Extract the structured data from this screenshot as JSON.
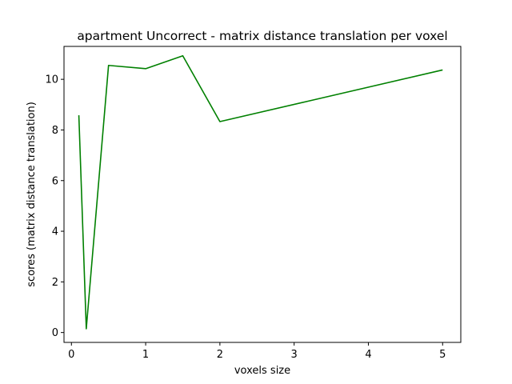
{
  "chart_data": {
    "type": "line",
    "title": "apartment Uncorrect - matrix distance translation per voxel",
    "xlabel": "voxels size",
    "ylabel": "scores (matrix distance translation)",
    "xlim": [
      -0.1,
      5.245
    ],
    "ylim": [
      -0.39,
      11.3
    ],
    "xticks": [
      0,
      1,
      2,
      3,
      4,
      5
    ],
    "xtick_labels": [
      "0",
      "1",
      "2",
      "3",
      "4",
      "5"
    ],
    "yticks": [
      0,
      2,
      4,
      6,
      8,
      10
    ],
    "ytick_labels": [
      "0",
      "2",
      "4",
      "6",
      "8",
      "10"
    ],
    "grid": false,
    "legend": "none",
    "series": [
      {
        "color": "#008000",
        "x": [
          0.1,
          0.2,
          0.5,
          1.0,
          1.5,
          2.0,
          5.0
        ],
        "y": [
          8.58,
          0.15,
          10.55,
          10.42,
          10.93,
          8.33,
          10.37
        ]
      }
    ]
  }
}
